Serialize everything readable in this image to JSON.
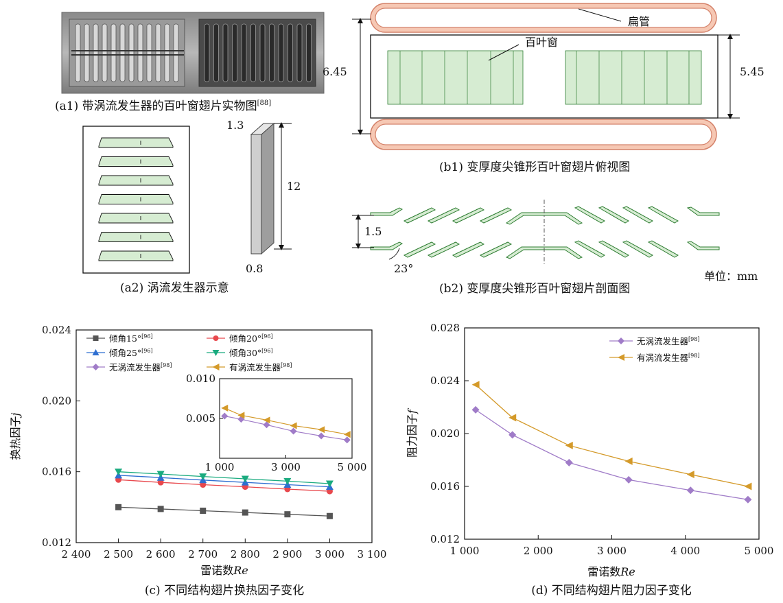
{
  "panel_a1": {
    "caption": "(a1) 带涡流发生器的百叶窗翅片实物图",
    "ref": "[88]"
  },
  "panel_a2": {
    "caption": "(a2) 涡流发生器示意",
    "dim_top": "1.3",
    "dim_height": "12",
    "dim_bottom": "0.8"
  },
  "panel_b1": {
    "caption": "(b1) 变厚度尖锥形百叶窗翅片俯视图",
    "label_tube": "扁管",
    "label_louver": "百叶窗",
    "dim_left": "6.45",
    "dim_right": "5.45"
  },
  "panel_b2": {
    "caption": "(b2) 变厚度尖锥形百叶窗翅片剖面图",
    "dim_pitch": "1.5",
    "dim_angle": "23°",
    "unit": "单位：mm"
  },
  "colors": {
    "fin_fill": "#d6ecd2",
    "fin_stroke": "#2e7d32",
    "tube_fill": "#f6c8b4",
    "tube_stroke": "#d4826a"
  },
  "chart_data": [
    {
      "type": "line",
      "caption": "(c) 不同结构翅片换热因子变化",
      "xlabel": "雷诺数Re",
      "ylabel": "换热因子j",
      "xlim": [
        2400,
        3100
      ],
      "ylim": [
        0.012,
        0.024
      ],
      "xticks": [
        "2 400",
        "2 500",
        "2 600",
        "2 700",
        "2 800",
        "2 900",
        "3 000",
        "3 100"
      ],
      "yticks": [
        "0.012",
        "0.016",
        "0.020",
        "0.024"
      ],
      "legend_position": "top-left",
      "series": [
        {
          "name": "倾角15°",
          "ref": "[96]",
          "color": "#555555",
          "marker": "square",
          "x": [
            2500,
            2600,
            2700,
            2800,
            2900,
            3000
          ],
          "y": [
            0.014,
            0.0139,
            0.0138,
            0.0137,
            0.0136,
            0.0135
          ]
        },
        {
          "name": "倾角20°",
          "ref": "[96]",
          "color": "#e8484d",
          "marker": "circle",
          "x": [
            2500,
            2600,
            2700,
            2800,
            2900,
            3000
          ],
          "y": [
            0.01555,
            0.0154,
            0.01527,
            0.01515,
            0.01502,
            0.0149
          ]
        },
        {
          "name": "倾角25°",
          "ref": "[96]",
          "color": "#2f6fd1",
          "marker": "triangle-up",
          "x": [
            2500,
            2600,
            2700,
            2800,
            2900,
            3000
          ],
          "y": [
            0.0158,
            0.01567,
            0.01553,
            0.0154,
            0.01527,
            0.01515
          ]
        },
        {
          "name": "倾角30°",
          "ref": "[96]",
          "color": "#1aab7f",
          "marker": "triangle-down",
          "x": [
            2500,
            2600,
            2700,
            2800,
            2900,
            3000
          ],
          "y": [
            0.016,
            0.01587,
            0.01573,
            0.0156,
            0.01547,
            0.01533
          ]
        },
        {
          "name": "无涡流发生器",
          "ref": "[98]",
          "color": "#a07cc8",
          "marker": "diamond",
          "in_inset": true
        },
        {
          "name": "有涡流发生器",
          "ref": "[98]",
          "color": "#d49a2a",
          "marker": "triangle-left",
          "in_inset": true
        }
      ],
      "inset": {
        "xlim": [
          1000,
          5000
        ],
        "ylim": [
          0,
          0.01
        ],
        "xticks": [
          "1 000",
          "3 000",
          "5 000"
        ],
        "yticks": [
          "0.005",
          "0.010"
        ],
        "series": [
          {
            "name": "无涡流发生器",
            "color": "#a07cc8",
            "marker": "diamond",
            "x": [
              1150,
              1650,
              2420,
              3230,
              4070,
              4850
            ],
            "y": [
              0.0053,
              0.0049,
              0.0042,
              0.0034,
              0.0028,
              0.0023
            ]
          },
          {
            "name": "有涡流发生器",
            "color": "#d49a2a",
            "marker": "triangle-left",
            "x": [
              1150,
              1650,
              2420,
              3230,
              4070,
              4850
            ],
            "y": [
              0.0063,
              0.0054,
              0.0048,
              0.0041,
              0.0036,
              0.003
            ]
          }
        ]
      }
    },
    {
      "type": "line",
      "caption": "(d) 不同结构翅片阻力因子变化",
      "xlabel": "雷诺数Re",
      "ylabel": "阻力因子f",
      "xlim": [
        1000,
        5000
      ],
      "ylim": [
        0.012,
        0.028
      ],
      "xticks": [
        "1 000",
        "2 000",
        "3 000",
        "4 000",
        "5 000"
      ],
      "yticks": [
        "0.012",
        "0.016",
        "0.020",
        "0.024",
        "0.028"
      ],
      "legend_position": "top-right",
      "series": [
        {
          "name": "无涡流发生器",
          "ref": "[98]",
          "color": "#a07cc8",
          "marker": "diamond",
          "x": [
            1150,
            1650,
            2420,
            3230,
            4070,
            4850
          ],
          "y": [
            0.0218,
            0.0199,
            0.0178,
            0.0165,
            0.0157,
            0.015
          ]
        },
        {
          "name": "有涡流发生器",
          "ref": "[98]",
          "color": "#d49a2a",
          "marker": "triangle-left",
          "x": [
            1150,
            1650,
            2420,
            3230,
            4070,
            4850
          ],
          "y": [
            0.0237,
            0.0212,
            0.0191,
            0.0179,
            0.0169,
            0.016
          ]
        }
      ]
    }
  ]
}
